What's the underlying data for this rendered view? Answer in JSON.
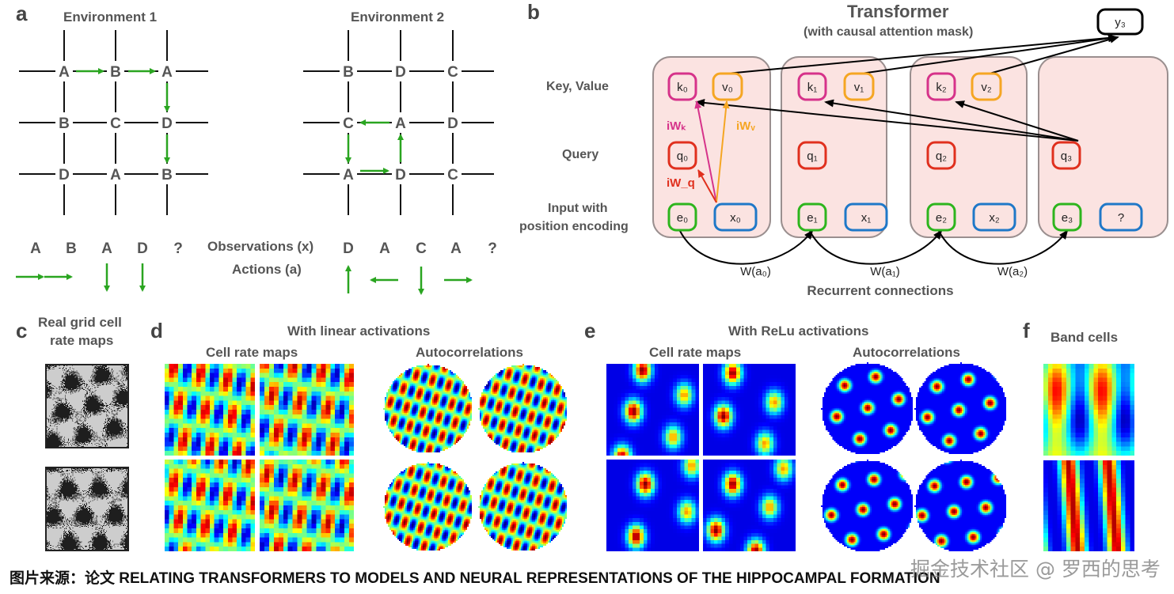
{
  "panel_a": {
    "label": "a",
    "env1_title": "Environment 1",
    "env2_title": "Environment 2",
    "env1_grid": [
      [
        "A",
        "B",
        "A"
      ],
      [
        "B",
        "C",
        "D"
      ],
      [
        "D",
        "A",
        "B"
      ]
    ],
    "env2_grid": [
      [
        "B",
        "D",
        "C"
      ],
      [
        "C",
        "A",
        "D"
      ],
      [
        "A",
        "D",
        "C"
      ]
    ],
    "observations_label": "Observations (x)",
    "actions_label": "Actions (a)",
    "env1_observations": [
      "A",
      "B",
      "A",
      "D",
      "?"
    ],
    "env1_actions": [
      "right",
      "right",
      "down",
      "down"
    ],
    "env2_observations": [
      "D",
      "A",
      "C",
      "A",
      "?"
    ],
    "env2_actions": [
      "up",
      "left",
      "down",
      "right"
    ]
  },
  "panel_b": {
    "label": "b",
    "title": "Transformer",
    "subtitle": "(with causal attention mask)",
    "output": "y₃",
    "row_labels": {
      "key_value": "Key, Value",
      "query": "Query",
      "input_line1": "Input with",
      "input_line2": "position encoding"
    },
    "keys": [
      "k₀",
      "k₁",
      "k₂"
    ],
    "values": [
      "v₀",
      "v₁",
      "v₂"
    ],
    "queries": [
      "q₀",
      "q₁",
      "q₂",
      "q₃"
    ],
    "encodings": [
      "e₀",
      "e₁",
      "e₂",
      "e₃"
    ],
    "inputs": [
      "x₀",
      "x₁",
      "x₂",
      "?"
    ],
    "weights": {
      "key": "iWₖ",
      "value": "iWᵥ",
      "query": "iW_q"
    },
    "recurrent": [
      "W(a₀)",
      "W(a₁)",
      "W(a₂)"
    ],
    "recurrent_label": "Recurrent connections",
    "colors": {
      "key": "#d6338a",
      "value": "#f5a623",
      "query": "#e0301e",
      "encoding": "#2db51d",
      "input": "#1f78c8",
      "column_fill": "#fbe3e1",
      "column_border": "#9a8f8f"
    }
  },
  "panel_c": {
    "label": "c",
    "title_line1": "Real grid cell",
    "title_line2": "rate maps"
  },
  "panel_d": {
    "label": "d",
    "title": "With linear activations",
    "rate_maps_title": "Cell rate maps",
    "autocorr_title": "Autocorrelations"
  },
  "panel_e": {
    "label": "e",
    "title": "With ReLu activations",
    "rate_maps_title": "Cell rate maps",
    "autocorr_title": "Autocorrelations"
  },
  "panel_f": {
    "label": "f",
    "title": "Band cells"
  },
  "caption": "图片来源：论文 RELATING TRANSFORMERS TO MODELS AND NEURAL REPRESENTATIONS OF THE HIPPOCAMPAL FORMATION",
  "watermark": "掘金技术社区 @ 罗西的思考"
}
